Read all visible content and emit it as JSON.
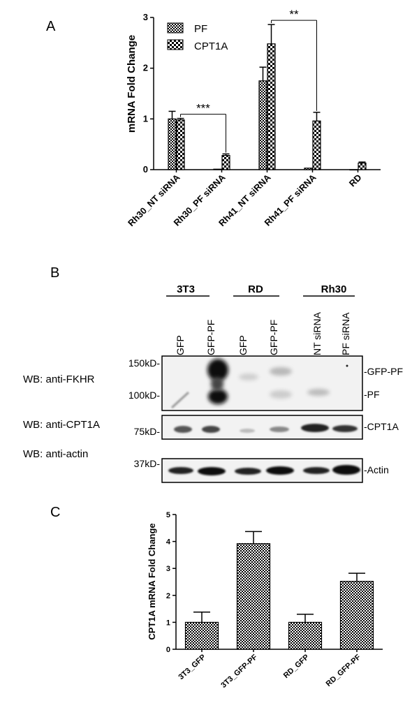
{
  "panel_labels": {
    "a": "A",
    "b": "B",
    "c": "C"
  },
  "colors": {
    "bar_stroke": "#000000",
    "pattern_dark": "#000000",
    "pattern_light": "#ffffff",
    "blot_bg": "#f2f2f2"
  },
  "chart_data": [
    {
      "id": "A",
      "type": "bar",
      "ylabel": "mRNA Fold Change",
      "ylim": [
        0,
        3
      ],
      "yticks": [
        "0",
        "1",
        "2",
        "3"
      ],
      "categories": [
        "Rh30_NT siRNA",
        "Rh30_PF siRNA",
        "Rh41_NT siRNA",
        "Rh41_PF siRNA",
        "RD"
      ],
      "series": [
        {
          "name": "PF",
          "pattern": "checker-fine",
          "values": [
            1.0,
            0.01,
            1.75,
            0.03,
            0.0
          ],
          "errors": [
            0.15,
            0.0,
            0.27,
            0.0,
            0.0
          ]
        },
        {
          "name": "CPT1A",
          "pattern": "checker-coarse",
          "values": [
            0.98,
            0.28,
            2.48,
            0.96,
            0.13
          ],
          "errors": [
            0.03,
            0.03,
            0.38,
            0.17,
            0.02
          ]
        }
      ],
      "significance": [
        {
          "label": "***",
          "from": 0,
          "to": 1
        },
        {
          "label": "**",
          "from": 2,
          "to": 3
        }
      ]
    },
    {
      "id": "C",
      "type": "bar",
      "ylabel": "CPT1A mRNA Fold Change",
      "ylim": [
        0,
        5
      ],
      "yticks": [
        "0",
        "1",
        "2",
        "3",
        "4",
        "5"
      ],
      "categories": [
        "3T3_GFP",
        "3T3_GFP-PF",
        "RD_GFP",
        "RD_GFP-PF"
      ],
      "series": [
        {
          "pattern": "checker-fine",
          "values": [
            1.0,
            3.92,
            1.0,
            2.52
          ],
          "errors": [
            0.38,
            0.45,
            0.3,
            0.3
          ]
        }
      ]
    }
  ],
  "western_blot": {
    "groups": [
      "3T3",
      "RD",
      "Rh30"
    ],
    "lanes": [
      "GFP",
      "GFP-PF",
      "GFP",
      "GFP-PF",
      "NT siRNA",
      "PF siRNA"
    ],
    "rows": [
      {
        "label": "WB: anti-FKHR",
        "markers": [
          "150kD-",
          "100kD-"
        ],
        "bands": [
          "-GFP-PF",
          "-PF"
        ]
      },
      {
        "label": "WB: anti-CPT1A",
        "markers": [
          "75kD-"
        ],
        "bands": [
          "-CPT1A"
        ]
      },
      {
        "label": "WB: anti-actin",
        "markers": [
          "37kD-"
        ],
        "bands": [
          "-Actin"
        ]
      }
    ]
  }
}
